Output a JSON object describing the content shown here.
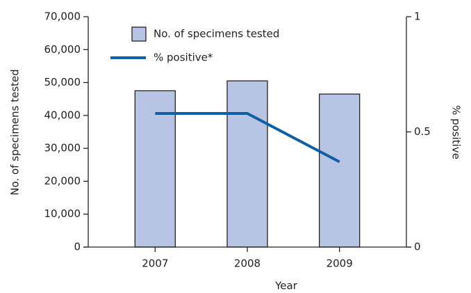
{
  "chart_data": {
    "type": "bar",
    "x_label": "Year",
    "y_label": "No. of specimens tested",
    "y2_label": "% positive",
    "categories": [
      "2007",
      "2008",
      "2009"
    ],
    "series": [
      {
        "name": "No. of specimens tested",
        "type": "bar",
        "color": "#b8c4e4",
        "values": [
          47500,
          50500,
          46500
        ]
      },
      {
        "name": "% positive*",
        "type": "line",
        "axis": "y2",
        "color": "#0f5fa6",
        "values": [
          0.58,
          0.58,
          0.37
        ]
      }
    ],
    "ylim": [
      0,
      70000
    ],
    "yticks": [
      0,
      {
        "value": 10000,
        "label": "10,000"
      },
      {
        "value": 20000,
        "label": "20,000"
      },
      {
        "value": 30000,
        "label": "30,000"
      },
      {
        "value": 40000,
        "label": "40,000"
      },
      {
        "value": 50000,
        "label": "50,000"
      },
      {
        "value": 60000,
        "label": "60,000"
      },
      {
        "value": 70000,
        "label": "70,000"
      }
    ],
    "y2lim": [
      0,
      1
    ],
    "y2ticks": [
      0,
      0.5,
      1
    ],
    "legend": "top-left"
  }
}
